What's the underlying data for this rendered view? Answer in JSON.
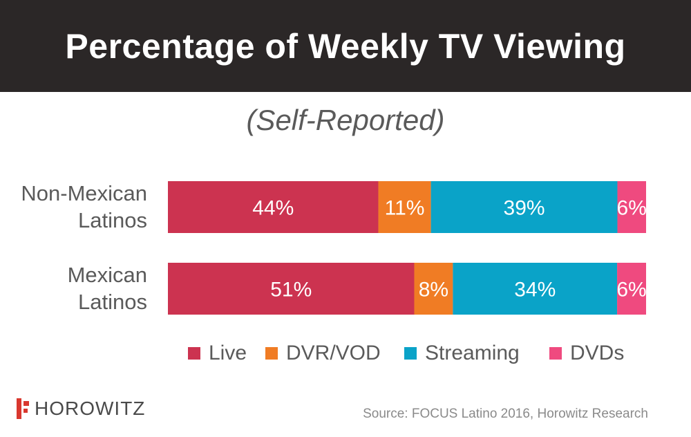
{
  "title": "Percentage of Weekly TV Viewing",
  "subtitle": "(Self-Reported)",
  "source": "Source: FOCUS Latino 2016, Horowitz Research",
  "logo": {
    "text": "HOROWITZ",
    "accent_color": "#d9372e"
  },
  "colors": {
    "header_bg": "#2b2727"
  },
  "chart_data": {
    "type": "bar",
    "orientation": "horizontal",
    "stacked": true,
    "percent_scale": true,
    "categories": [
      [
        "Non-Mexican",
        "Latinos"
      ],
      [
        "Mexican",
        "Latinos"
      ]
    ],
    "series": [
      {
        "name": "Live",
        "color": "#cc3350",
        "values": [
          44,
          51
        ],
        "labels": [
          "44%",
          "51%"
        ]
      },
      {
        "name": "DVR/VOD",
        "color": "#f07c24",
        "values": [
          11,
          8
        ],
        "labels": [
          "11%",
          "8%"
        ]
      },
      {
        "name": "Streaming",
        "color": "#0aa3c8",
        "values": [
          39,
          34
        ],
        "labels": [
          "39%",
          "34%"
        ]
      },
      {
        "name": "DVDs",
        "color": "#ef4a7f",
        "values": [
          6,
          6
        ],
        "labels": [
          "6%",
          "6%"
        ]
      }
    ],
    "legend_position": "bottom",
    "grid": false
  }
}
